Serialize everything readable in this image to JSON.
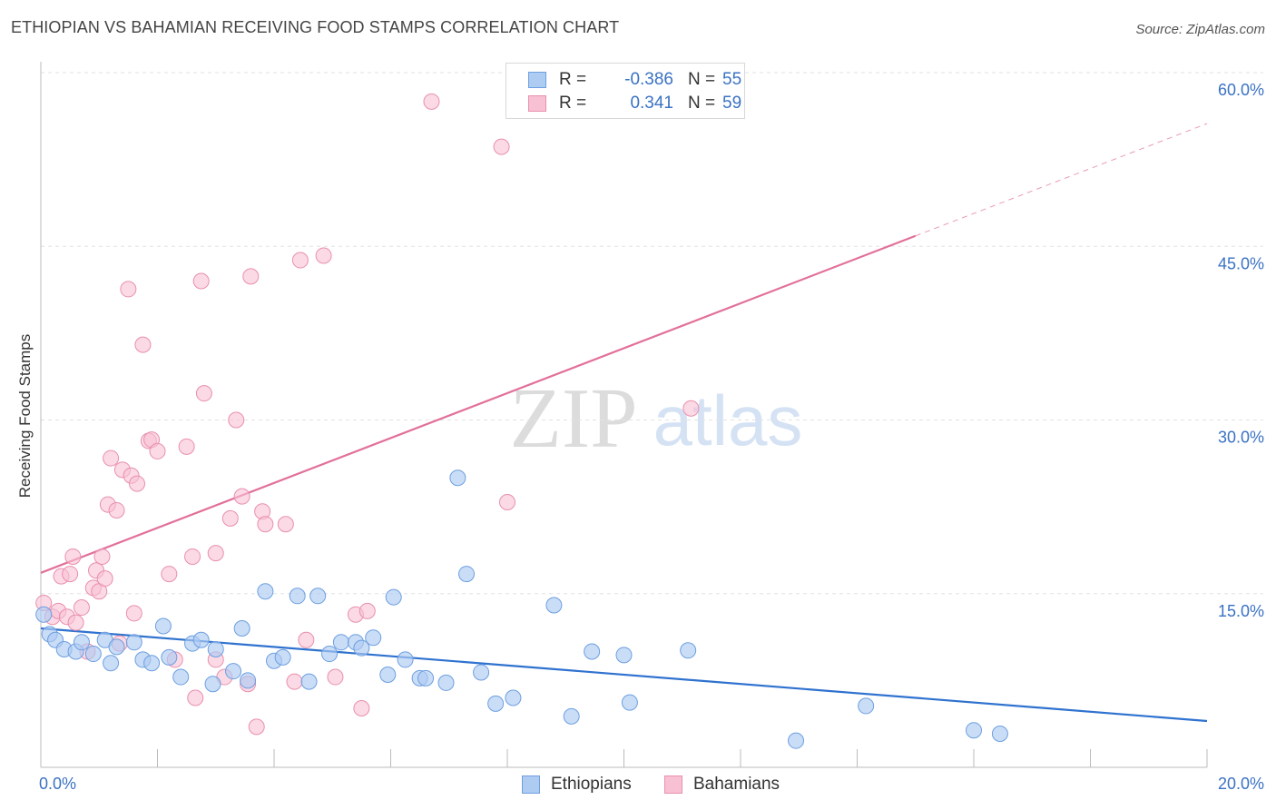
{
  "header": {
    "title": "ETHIOPIAN VS BAHAMIAN RECEIVING FOOD STAMPS CORRELATION CHART",
    "source": "Source: ZipAtlas.com"
  },
  "watermark": {
    "zip": "ZIP",
    "atlas": "atlas"
  },
  "colors": {
    "ethiopians_fill": "#aecbf2",
    "ethiopians_stroke": "#6d9fe0",
    "ethiopians_line": "#2f72cf",
    "bahamians_fill": "#f8c1d3",
    "bahamians_stroke": "#e98fae",
    "bahamians_line": "#e2709a",
    "axis_label": "#3a72c4"
  },
  "legend": {
    "rows": [
      {
        "r_label": "R =",
        "r_value": "-0.386",
        "n_label": "N =",
        "n_value": "55"
      },
      {
        "r_label": "R =",
        "r_value": "0.341",
        "n_label": "N =",
        "n_value": "59"
      }
    ],
    "bottom": [
      "Ethiopians",
      "Bahamians"
    ]
  },
  "chart_data": {
    "type": "scatter",
    "title": "ETHIOPIAN VS BAHAMIAN RECEIVING FOOD STAMPS CORRELATION CHART",
    "xlabel": "",
    "ylabel": "Receiving Food Stamps",
    "xlim": [
      0,
      20
    ],
    "ylim": [
      0,
      60
    ],
    "x_ticks_labels": [
      "0.0%",
      "20.0%"
    ],
    "y_ticks": [
      15,
      30,
      45,
      60
    ],
    "y_ticks_labels": [
      "15.0%",
      "30.0%",
      "45.0%",
      "60.0%"
    ],
    "grid": true,
    "legend_position": "top-center",
    "series": [
      {
        "name": "Ethiopians",
        "r": -0.386,
        "n": 55,
        "trend": {
          "x": [
            0,
            20
          ],
          "y": [
            12.0,
            4.0
          ],
          "dashed_from": null
        },
        "points": [
          [
            0.05,
            13.2
          ],
          [
            0.15,
            11.5
          ],
          [
            0.25,
            11.0
          ],
          [
            0.4,
            10.2
          ],
          [
            0.6,
            10.0
          ],
          [
            0.7,
            10.8
          ],
          [
            0.9,
            9.8
          ],
          [
            1.1,
            11.0
          ],
          [
            1.2,
            9.0
          ],
          [
            1.3,
            10.4
          ],
          [
            1.6,
            10.8
          ],
          [
            1.75,
            9.3
          ],
          [
            1.9,
            9.0
          ],
          [
            2.1,
            12.2
          ],
          [
            2.2,
            9.5
          ],
          [
            2.4,
            7.8
          ],
          [
            2.6,
            10.7
          ],
          [
            2.75,
            11.0
          ],
          [
            2.95,
            7.2
          ],
          [
            3.0,
            10.2
          ],
          [
            3.3,
            8.3
          ],
          [
            3.45,
            12.0
          ],
          [
            3.55,
            7.5
          ],
          [
            3.85,
            15.2
          ],
          [
            4.0,
            9.2
          ],
          [
            4.15,
            9.5
          ],
          [
            4.4,
            14.8
          ],
          [
            4.6,
            7.4
          ],
          [
            4.75,
            14.8
          ],
          [
            4.95,
            9.8
          ],
          [
            5.15,
            10.8
          ],
          [
            5.4,
            10.8
          ],
          [
            5.5,
            10.3
          ],
          [
            5.7,
            11.2
          ],
          [
            5.95,
            8.0
          ],
          [
            6.05,
            14.7
          ],
          [
            6.25,
            9.3
          ],
          [
            6.5,
            7.7
          ],
          [
            6.6,
            7.7
          ],
          [
            6.95,
            7.3
          ],
          [
            7.15,
            25.0
          ],
          [
            7.3,
            16.7
          ],
          [
            7.55,
            8.2
          ],
          [
            7.8,
            5.5
          ],
          [
            8.1,
            6.0
          ],
          [
            8.8,
            14.0
          ],
          [
            9.1,
            4.4
          ],
          [
            9.45,
            10.0
          ],
          [
            10.0,
            9.7
          ],
          [
            10.1,
            5.6
          ],
          [
            11.1,
            10.1
          ],
          [
            12.95,
            2.3
          ],
          [
            14.15,
            5.3
          ],
          [
            16.0,
            3.2
          ],
          [
            16.45,
            2.9
          ]
        ]
      },
      {
        "name": "Bahamians",
        "r": 0.341,
        "n": 59,
        "trend": {
          "x": [
            0,
            20
          ],
          "y": [
            16.8,
            55.6
          ],
          "dashed_from": 15
        },
        "points": [
          [
            0.05,
            14.2
          ],
          [
            0.2,
            13.0
          ],
          [
            0.3,
            13.5
          ],
          [
            0.35,
            16.5
          ],
          [
            0.45,
            13.0
          ],
          [
            0.5,
            16.7
          ],
          [
            0.55,
            18.2
          ],
          [
            0.6,
            12.5
          ],
          [
            0.7,
            13.8
          ],
          [
            0.8,
            10.0
          ],
          [
            0.9,
            15.5
          ],
          [
            0.95,
            17.0
          ],
          [
            1.0,
            15.2
          ],
          [
            1.05,
            18.2
          ],
          [
            1.1,
            16.3
          ],
          [
            1.15,
            22.7
          ],
          [
            1.2,
            26.7
          ],
          [
            1.3,
            22.2
          ],
          [
            1.35,
            10.7
          ],
          [
            1.4,
            25.7
          ],
          [
            1.5,
            41.3
          ],
          [
            1.55,
            25.2
          ],
          [
            1.6,
            13.3
          ],
          [
            1.65,
            24.5
          ],
          [
            1.75,
            36.5
          ],
          [
            1.85,
            28.2
          ],
          [
            1.9,
            28.3
          ],
          [
            2.0,
            27.3
          ],
          [
            2.2,
            16.7
          ],
          [
            2.3,
            9.3
          ],
          [
            2.5,
            27.7
          ],
          [
            2.6,
            18.2
          ],
          [
            2.65,
            6.0
          ],
          [
            2.75,
            42.0
          ],
          [
            2.8,
            32.3
          ],
          [
            3.0,
            18.5
          ],
          [
            3.15,
            7.8
          ],
          [
            3.25,
            21.5
          ],
          [
            3.35,
            30.0
          ],
          [
            3.45,
            23.4
          ],
          [
            3.6,
            42.4
          ],
          [
            3.7,
            3.5
          ],
          [
            3.8,
            22.1
          ],
          [
            3.85,
            21.0
          ],
          [
            4.2,
            21.0
          ],
          [
            4.35,
            7.4
          ],
          [
            4.45,
            43.8
          ],
          [
            4.55,
            11.0
          ],
          [
            4.85,
            44.2
          ],
          [
            5.05,
            7.8
          ],
          [
            5.4,
            13.2
          ],
          [
            5.5,
            5.1
          ],
          [
            5.6,
            13.5
          ],
          [
            6.7,
            57.5
          ],
          [
            7.9,
            53.6
          ],
          [
            8.0,
            22.9
          ],
          [
            11.15,
            31.0
          ],
          [
            3.0,
            9.3
          ],
          [
            3.55,
            7.2
          ]
        ]
      }
    ]
  }
}
